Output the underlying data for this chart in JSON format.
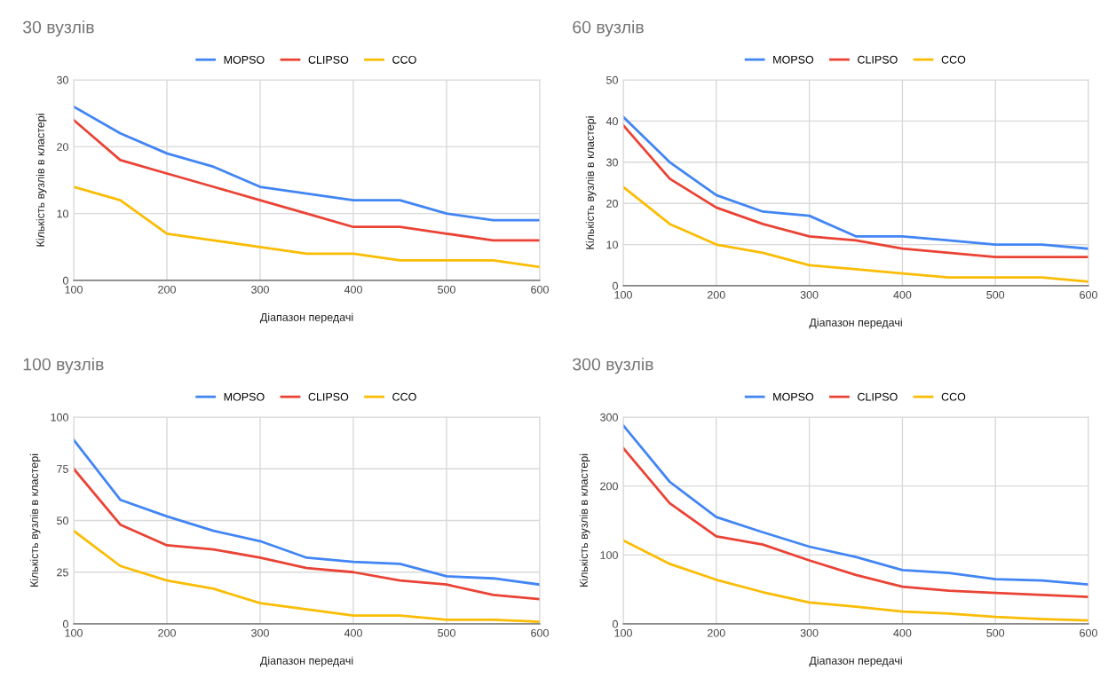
{
  "chart_data": [
    {
      "type": "line",
      "title": "30 вузлів",
      "xlabel": "Діапазон передачі",
      "ylabel": "Кількість вузлів в кластері",
      "x": [
        100,
        150,
        200,
        250,
        300,
        350,
        400,
        450,
        500,
        550,
        600
      ],
      "xlim": [
        100,
        600
      ],
      "xticks": [
        100,
        200,
        300,
        400,
        500,
        600
      ],
      "ylim": [
        0,
        30
      ],
      "yticks": [
        0,
        10,
        20,
        30
      ],
      "grid": true,
      "legend": "top",
      "marker": "none",
      "line_style": "solid",
      "series": [
        {
          "name": "MOPSO",
          "color": "#4285f4",
          "values": [
            26,
            22,
            19,
            17,
            14,
            13,
            12,
            12,
            10,
            9,
            9
          ]
        },
        {
          "name": "CLIPSO",
          "color": "#ea4335",
          "values": [
            24,
            18,
            16,
            14,
            12,
            10,
            8,
            8,
            7,
            6,
            6
          ]
        },
        {
          "name": "CCO",
          "color": "#fbbc04",
          "values": [
            14,
            12,
            7,
            6,
            5,
            4,
            4,
            3,
            3,
            3,
            2
          ]
        }
      ]
    },
    {
      "type": "line",
      "title": "60 вузлів",
      "xlabel": "Діапазон передачі",
      "ylabel": "Кількість вузлів в кластері",
      "x": [
        100,
        150,
        200,
        250,
        300,
        350,
        400,
        450,
        500,
        550,
        600
      ],
      "xlim": [
        100,
        600
      ],
      "xticks": [
        100,
        200,
        300,
        400,
        500,
        600
      ],
      "ylim": [
        0,
        50
      ],
      "yticks": [
        0,
        10,
        20,
        30,
        40,
        50
      ],
      "grid": true,
      "legend": "top",
      "marker": "none",
      "line_style": "solid",
      "series": [
        {
          "name": "MOPSO",
          "color": "#4285f4",
          "values": [
            41,
            30,
            22,
            18,
            17,
            12,
            12,
            11,
            10,
            10,
            9
          ]
        },
        {
          "name": "CLIPSO",
          "color": "#ea4335",
          "values": [
            39,
            26,
            19,
            15,
            12,
            11,
            9,
            8,
            7,
            7,
            7
          ]
        },
        {
          "name": "CCO",
          "color": "#fbbc04",
          "values": [
            24,
            15,
            10,
            8,
            5,
            4,
            3,
            2,
            2,
            2,
            1
          ]
        }
      ]
    },
    {
      "type": "line",
      "title": "100 вузлів",
      "xlabel": "Діапазон передачі",
      "ylabel": "Кількість вузлів в кластері",
      "x": [
        100,
        150,
        200,
        250,
        300,
        350,
        400,
        450,
        500,
        550,
        600
      ],
      "xlim": [
        100,
        600
      ],
      "xticks": [
        100,
        200,
        300,
        400,
        500,
        600
      ],
      "ylim": [
        0,
        100
      ],
      "yticks": [
        0,
        25,
        50,
        75,
        100
      ],
      "grid": true,
      "legend": "top",
      "marker": "none",
      "line_style": "solid",
      "series": [
        {
          "name": "MOPSO",
          "color": "#4285f4",
          "values": [
            89,
            60,
            52,
            45,
            40,
            32,
            30,
            29,
            23,
            22,
            19
          ]
        },
        {
          "name": "CLIPSO",
          "color": "#ea4335",
          "values": [
            75,
            48,
            38,
            36,
            32,
            27,
            25,
            21,
            19,
            14,
            12
          ]
        },
        {
          "name": "CCO",
          "color": "#fbbc04",
          "values": [
            45,
            28,
            21,
            17,
            10,
            7,
            4,
            4,
            2,
            2,
            1
          ]
        }
      ]
    },
    {
      "type": "line",
      "title": "300 вузлів",
      "xlabel": "Діапазон передачі",
      "ylabel": "Кількість вузлів в кластері",
      "x": [
        100,
        150,
        200,
        250,
        300,
        350,
        400,
        450,
        500,
        550,
        600
      ],
      "xlim": [
        100,
        600
      ],
      "xticks": [
        100,
        200,
        300,
        400,
        500,
        600
      ],
      "ylim": [
        0,
        300
      ],
      "yticks": [
        0,
        100,
        200,
        300
      ],
      "grid": true,
      "legend": "top",
      "marker": "none",
      "line_style": "solid",
      "series": [
        {
          "name": "MOPSO",
          "color": "#4285f4",
          "values": [
            288,
            206,
            155,
            133,
            112,
            97,
            78,
            74,
            65,
            63,
            57
          ]
        },
        {
          "name": "CLIPSO",
          "color": "#ea4335",
          "values": [
            255,
            175,
            127,
            115,
            92,
            71,
            54,
            48,
            45,
            42,
            39
          ]
        },
        {
          "name": "CCO",
          "color": "#fbbc04",
          "values": [
            121,
            87,
            64,
            46,
            31,
            25,
            18,
            15,
            10,
            7,
            5
          ]
        }
      ]
    }
  ]
}
